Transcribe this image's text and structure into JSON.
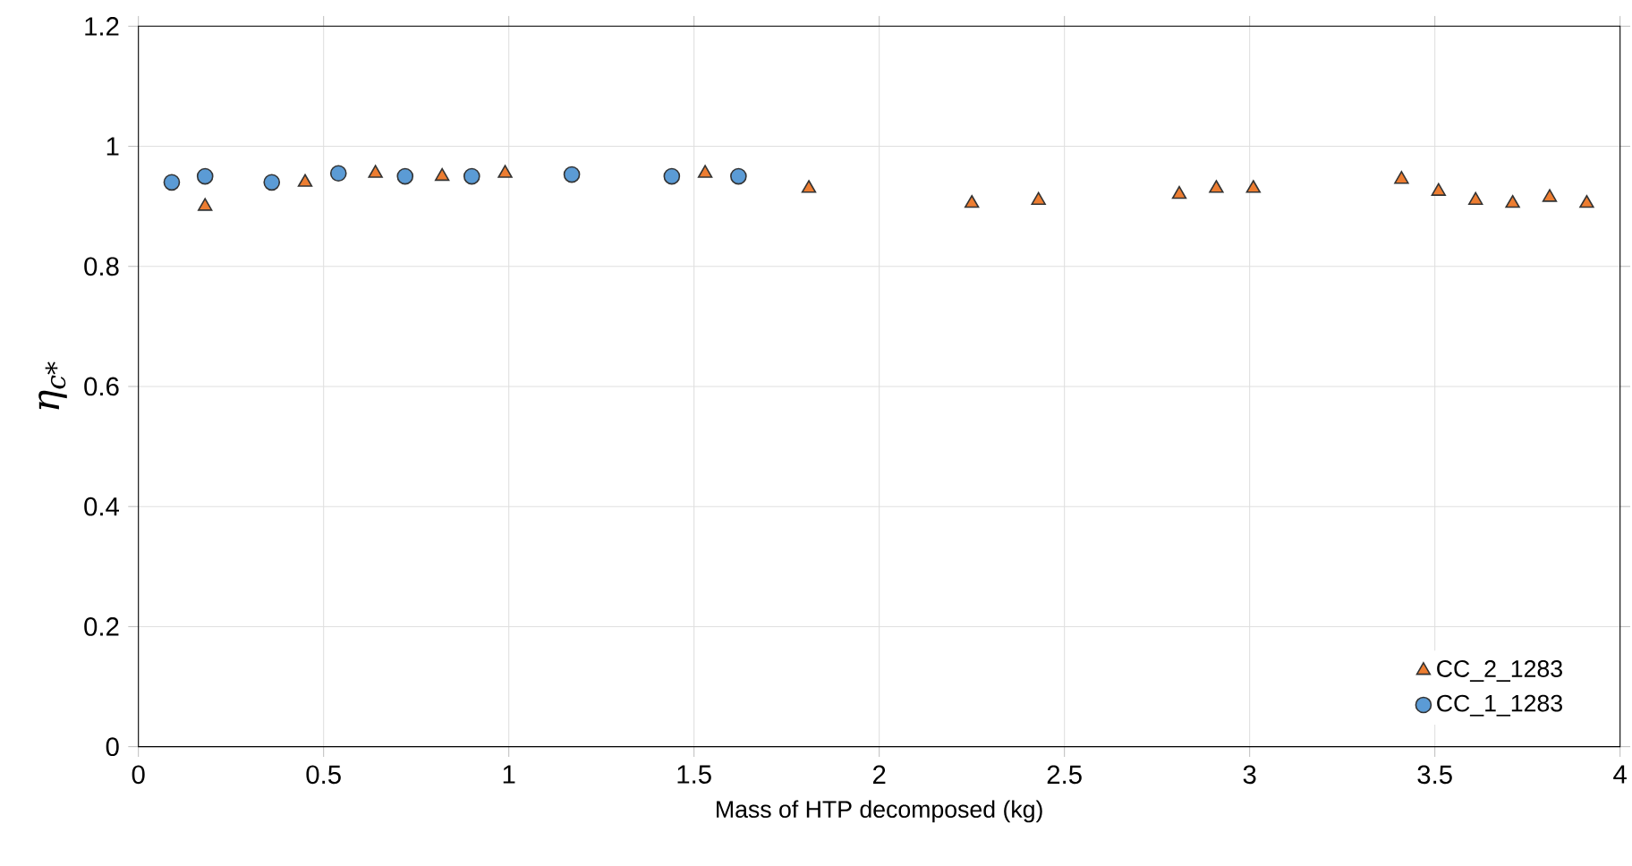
{
  "chart_data": {
    "type": "scatter",
    "xlabel": "Mass of HTP decomposed (kg)",
    "ylabel": "η$_{c*}$",
    "xlim": [
      0,
      4
    ],
    "xticks": [
      0,
      0.5,
      1,
      1.5,
      2,
      2.5,
      3,
      3.5,
      4
    ],
    "ylim": [
      0,
      1.2
    ],
    "yticks": [
      0,
      0.2,
      0.4,
      0.6,
      0.8,
      1,
      1.2
    ],
    "grid": true,
    "legend": "bottom right",
    "series": [
      {
        "name": "CC_2_1283",
        "color": "#ed7d31",
        "marker": "triangle",
        "x": [
          0.18,
          0.45,
          0.64,
          0.82,
          0.99,
          1.53,
          1.81,
          2.25,
          2.43,
          2.81,
          2.91,
          3.01,
          3.41,
          3.51,
          3.61,
          3.71,
          3.81,
          3.91
        ],
        "values": [
          0.9,
          0.94,
          0.955,
          0.95,
          0.955,
          0.955,
          0.93,
          0.905,
          0.91,
          0.92,
          0.93,
          0.93,
          0.945,
          0.925,
          0.91,
          0.905,
          0.915,
          0.905
        ]
      },
      {
        "name": "CC_1_1283",
        "color": "#5b9bd5",
        "marker": "circle",
        "x": [
          0.09,
          0.18,
          0.36,
          0.54,
          0.72,
          0.9,
          1.17,
          1.44,
          1.62
        ],
        "values": [
          0.94,
          0.95,
          0.94,
          0.955,
          0.95,
          0.95,
          0.953,
          0.95,
          0.95
        ]
      }
    ]
  }
}
